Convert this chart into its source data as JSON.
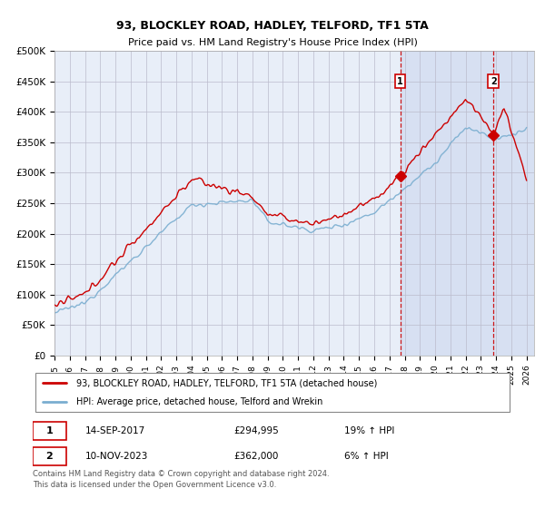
{
  "title": "93, BLOCKLEY ROAD, HADLEY, TELFORD, TF1 5TA",
  "subtitle": "Price paid vs. HM Land Registry's House Price Index (HPI)",
  "ylim": [
    0,
    500000
  ],
  "yticks": [
    0,
    50000,
    100000,
    150000,
    200000,
    250000,
    300000,
    350000,
    400000,
    450000,
    500000
  ],
  "ytick_labels": [
    "£0",
    "£50K",
    "£100K",
    "£150K",
    "£200K",
    "£250K",
    "£300K",
    "£350K",
    "£400K",
    "£450K",
    "£500K"
  ],
  "xlim_start": 1995.0,
  "xlim_end": 2026.5,
  "xticks": [
    1995,
    1996,
    1997,
    1998,
    1999,
    2000,
    2001,
    2002,
    2003,
    2004,
    2005,
    2006,
    2007,
    2008,
    2009,
    2010,
    2011,
    2012,
    2013,
    2014,
    2015,
    2016,
    2017,
    2018,
    2019,
    2020,
    2021,
    2022,
    2023,
    2024,
    2025,
    2026
  ],
  "background_color": "#ffffff",
  "plot_bg_color": "#e8eef8",
  "grid_color": "#bbbbcc",
  "hpi_color": "#7aaed0",
  "price_color": "#cc0000",
  "sale1_x": 2017.708,
  "sale1_y": 294995,
  "sale2_x": 2023.833,
  "sale2_y": 362000,
  "sale1_label": "14-SEP-2017",
  "sale1_price": "£294,995",
  "sale1_hpi": "19% ↑ HPI",
  "sale2_label": "10-NOV-2023",
  "sale2_price": "£362,000",
  "sale2_hpi": "6% ↑ HPI",
  "legend_line1": "93, BLOCKLEY ROAD, HADLEY, TELFORD, TF1 5TA (detached house)",
  "legend_line2": "HPI: Average price, detached house, Telford and Wrekin",
  "footer": "Contains HM Land Registry data © Crown copyright and database right 2024.\nThis data is licensed under the Open Government Licence v3.0.",
  "shaded_region_start": 2017.708,
  "future_shade_start": 2024.083
}
